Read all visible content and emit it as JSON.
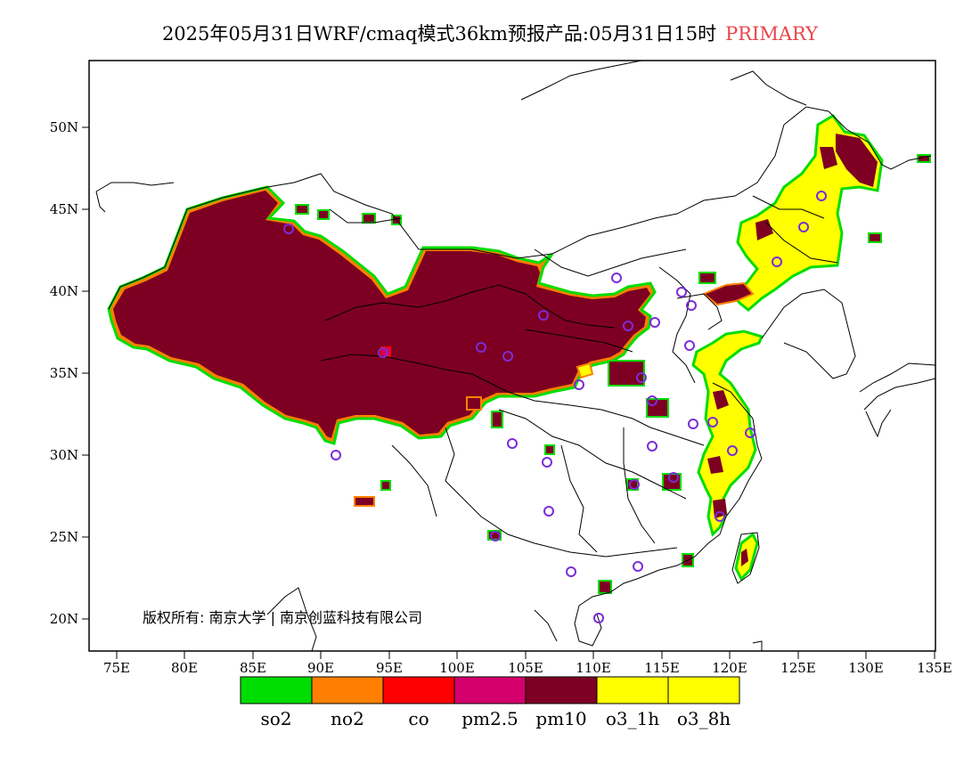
{
  "title": {
    "text": "2025年05月31日WRF/cmaq模式36km预报产品:05月31日15时",
    "tag": "PRIMARY",
    "tag_color": "#e8454a"
  },
  "axes": {
    "x_ticks": [
      "75E",
      "80E",
      "85E",
      "90E",
      "95E",
      "100E",
      "105E",
      "110E",
      "115E",
      "120E",
      "125E",
      "130E",
      "135E"
    ],
    "y_ticks": [
      "50N",
      "45N",
      "40N",
      "35N",
      "30N",
      "25N",
      "20N"
    ],
    "x_range": [
      73,
      135
    ],
    "y_range": [
      18,
      54
    ]
  },
  "copyright": "版权所有: 南京大学 | 南京创蓝科技有限公司",
  "legend": {
    "items": [
      {
        "label": "so2",
        "color": "#00dd00"
      },
      {
        "label": "no2",
        "color": "#ff8000"
      },
      {
        "label": "co",
        "color": "#ff0000"
      },
      {
        "label": "pm2.5",
        "color": "#d4006c"
      },
      {
        "label": "pm10",
        "color": "#7d0023"
      },
      {
        "label": "o3_1h",
        "color": "#ffff00"
      },
      {
        "label": "o3_8h",
        "color": "#ffff00"
      }
    ]
  },
  "colors": {
    "pm10_fill": "#7d0023",
    "o3_fill": "#ffff00",
    "station_ring": "#7b2cd8",
    "border": "#000000"
  }
}
